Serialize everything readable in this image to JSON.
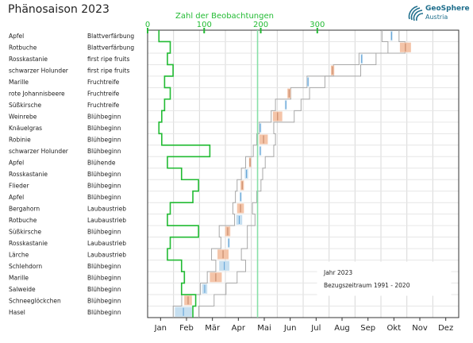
{
  "title": "Phänosaison 2023",
  "logo": {
    "line1": "GeoSphere",
    "line2": "Austria"
  },
  "chart_data": {
    "type": "gantt",
    "year": "2023",
    "top_axis": {
      "label": "Zahl der Beobachtungen",
      "ticks": [
        0,
        100,
        200,
        300
      ],
      "color": "#22bb33"
    },
    "x_ticks": [
      "Jan",
      "Feb",
      "Mär",
      "Apr",
      "Mai",
      "Jun",
      "Jul",
      "Aug",
      "Sep",
      "Okt",
      "Nov",
      "Dez"
    ],
    "today_line_doy": 129,
    "legend": {
      "entry1": "Jahr 2023",
      "entry2": "Bezugszeitraum 1991 - 2020",
      "position": "bottom-right"
    },
    "rows": [
      {
        "plant": "Apfel",
        "phase": "Blattverfärbung",
        "ref": [
          275,
          295
        ],
        "y2023": [
          285,
          287
        ],
        "n": 20,
        "above": true
      },
      {
        "plant": "Rotbuche",
        "phase": "Blattverfärbung",
        "ref": [
          282,
          302
        ],
        "y2023": [
          296,
          309
        ],
        "n": 40,
        "above": false
      },
      {
        "plant": "Rosskastanie",
        "phase": "first ripe fruits",
        "ref": [
          248,
          268
        ],
        "y2023": [
          250,
          252
        ],
        "n": 35,
        "above": true
      },
      {
        "plant": "schwarzer Holunder",
        "phase": "first ripe fruits",
        "ref": [
          218,
          250
        ],
        "y2023": [
          215,
          219
        ],
        "n": 45,
        "above": false
      },
      {
        "plant": "Marille",
        "phase": "Fruchtreife",
        "ref": [
          187,
          208
        ],
        "y2023": [
          187,
          189
        ],
        "n": 30,
        "above": true
      },
      {
        "plant": "rote Johannisbeere",
        "phase": "Fruchtreife",
        "ref": [
          168,
          190
        ],
        "y2023": [
          164,
          168
        ],
        "n": 40,
        "above": false
      },
      {
        "plant": "Süßkirsche",
        "phase": "Fruchtreife",
        "ref": [
          150,
          180
        ],
        "y2023": [
          161,
          163
        ],
        "n": 30,
        "above": true
      },
      {
        "plant": "Weinrebe",
        "phase": "Blühbeginn",
        "ref": [
          145,
          172
        ],
        "y2023": [
          147,
          158
        ],
        "n": 25,
        "above": false
      },
      {
        "plant": "Knäuelgras",
        "phase": "Blühbeginn",
        "ref": [
          131,
          148
        ],
        "y2023": [
          131,
          133
        ],
        "n": 20,
        "above": true
      },
      {
        "plant": "Robinie",
        "phase": "Blühbeginn",
        "ref": [
          128,
          150
        ],
        "y2023": [
          131,
          141
        ],
        "n": 25,
        "above": false
      },
      {
        "plant": "schwarzer Holunder",
        "phase": "Blühbeginn",
        "ref": [
          124,
          148
        ],
        "y2023": [
          131,
          133
        ],
        "n": 110,
        "above": true
      },
      {
        "plant": "Apfel",
        "phase": "Blühende",
        "ref": [
          115,
          138
        ],
        "y2023": [
          119,
          121
        ],
        "n": 35,
        "above": false
      },
      {
        "plant": "Rosskastanie",
        "phase": "Blühbeginn",
        "ref": [
          110,
          135
        ],
        "y2023": [
          114,
          118
        ],
        "n": 60,
        "above": true
      },
      {
        "plant": "Flieder",
        "phase": "Blühbeginn",
        "ref": [
          105,
          133
        ],
        "y2023": [
          109,
          113
        ],
        "n": 90,
        "above": false
      },
      {
        "plant": "Apfel",
        "phase": "Blühbeginn",
        "ref": [
          103,
          128
        ],
        "y2023": [
          108,
          110
        ],
        "n": 80,
        "above": true
      },
      {
        "plant": "Bergahorn",
        "phase": "Laubaustrieb",
        "ref": [
          100,
          123
        ],
        "y2023": [
          105,
          113
        ],
        "n": 40,
        "above": false
      },
      {
        "plant": "Rotbuche",
        "phase": "Laubaustrieb",
        "ref": [
          102,
          126
        ],
        "y2023": [
          104,
          111
        ],
        "n": 35,
        "above": true
      },
      {
        "plant": "Süßkirsche",
        "phase": "Blühbeginn",
        "ref": [
          84,
          117
        ],
        "y2023": [
          91,
          97
        ],
        "n": 90,
        "above": false
      },
      {
        "plant": "Rosskastanie",
        "phase": "Laubaustrieb",
        "ref": [
          86,
          117
        ],
        "y2023": [
          94,
          96
        ],
        "n": 40,
        "above": true
      },
      {
        "plant": "Lärche",
        "phase": "Laubaustrieb",
        "ref": [
          75,
          110
        ],
        "y2023": [
          82,
          95
        ],
        "n": 35,
        "above": false
      },
      {
        "plant": "Schlehdorn",
        "phase": "Blühbeginn",
        "ref": [
          80,
          115
        ],
        "y2023": [
          84,
          96
        ],
        "n": 60,
        "above": true
      },
      {
        "plant": "Marille",
        "phase": "Blühbeginn",
        "ref": [
          70,
          105
        ],
        "y2023": [
          73,
          87
        ],
        "n": 65,
        "above": false
      },
      {
        "plant": "Salweide",
        "phase": "Blühbeginn",
        "ref": [
          62,
          92
        ],
        "y2023": [
          64,
          70
        ],
        "n": 60,
        "above": true
      },
      {
        "plant": "Schneeglöckchen",
        "phase": "Blühbeginn",
        "ref": [
          40,
          78
        ],
        "y2023": [
          43,
          52
        ],
        "n": 85,
        "above": false
      },
      {
        "plant": "Hasel",
        "phase": "Blühbeginn",
        "ref": [
          30,
          60
        ],
        "y2023": [
          32,
          52
        ],
        "n": 80,
        "above": true
      }
    ]
  },
  "colors": {
    "green": "#22bb33",
    "today": "#88e0a8",
    "warm": "#f4c4a8",
    "warmDark": "#c08060",
    "cool": "#c6dff0",
    "coolDark": "#5b9fd6",
    "ref": "#a8a8a8"
  }
}
